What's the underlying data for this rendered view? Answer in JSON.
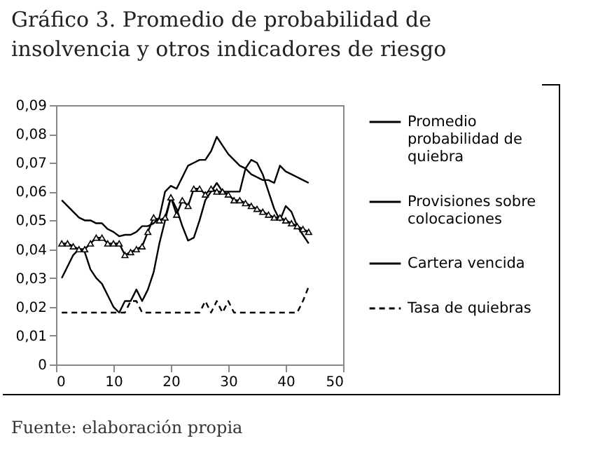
{
  "chart_data": {
    "type": "line",
    "title": "Gráfico 3. Promedio de probabilidad de insolvencia y otros indicadores de riesgo",
    "x": [
      1,
      2,
      3,
      4,
      5,
      6,
      7,
      8,
      9,
      10,
      11,
      12,
      13,
      14,
      15,
      16,
      17,
      18,
      19,
      20,
      21,
      22,
      23,
      24,
      25,
      26,
      27,
      28,
      29,
      30,
      31,
      32,
      33,
      34,
      35,
      36,
      37,
      38,
      39,
      40,
      41,
      42,
      43,
      44
    ],
    "series": [
      {
        "name": "Promedio probabilidad de quiebra",
        "color": "#000000",
        "values": [
          0.03,
          0.034,
          0.038,
          0.04,
          0.039,
          0.033,
          0.03,
          0.028,
          0.024,
          0.02,
          0.018,
          0.022,
          0.022,
          0.026,
          0.022,
          0.026,
          0.032,
          0.042,
          0.05,
          0.058,
          0.054,
          0.048,
          0.043,
          0.044,
          0.05,
          0.057,
          0.06,
          0.063,
          0.06,
          0.06,
          0.06,
          0.06,
          0.068,
          0.071,
          0.07,
          0.066,
          0.06,
          0.054,
          0.05,
          0.055,
          0.053,
          0.048,
          0.045,
          0.042
        ]
      },
      {
        "name": "Provisiones sobre colocaciones",
        "color": "#000000",
        "values": [
          0.057,
          0.055,
          0.053,
          0.051,
          0.05,
          0.05,
          0.049,
          0.049,
          0.047,
          0.046,
          0.0445,
          0.045,
          0.045,
          0.046,
          0.048,
          0.048,
          0.049,
          0.051,
          0.06,
          0.062,
          0.061,
          0.065,
          0.069,
          0.07,
          0.071,
          0.071,
          0.074,
          0.079,
          0.076,
          0.073,
          0.071,
          0.069,
          0.068,
          0.066,
          0.065,
          0.064,
          0.064,
          0.063,
          0.069,
          0.067,
          0.066,
          0.065,
          0.064,
          0.063
        ]
      },
      {
        "name": "Cartera vencida",
        "color": "#000000",
        "marker": "triangle",
        "values": [
          0.042,
          0.042,
          0.041,
          0.04,
          0.04,
          0.042,
          0.044,
          0.044,
          0.042,
          0.042,
          0.042,
          0.038,
          0.039,
          0.04,
          0.041,
          0.046,
          0.051,
          0.05,
          0.051,
          0.058,
          0.052,
          0.057,
          0.055,
          0.061,
          0.061,
          0.059,
          0.061,
          0.06,
          0.06,
          0.059,
          0.057,
          0.057,
          0.056,
          0.055,
          0.054,
          0.053,
          0.052,
          0.051,
          0.051,
          0.05,
          0.049,
          0.048,
          0.047,
          0.046
        ]
      },
      {
        "name": "Tasa de quiebras",
        "color": "#000000",
        "line_style": "dashed",
        "values": [
          0.018,
          0.018,
          0.018,
          0.018,
          0.018,
          0.018,
          0.018,
          0.018,
          0.018,
          0.018,
          0.018,
          0.018,
          0.022,
          0.022,
          0.018,
          0.018,
          0.018,
          0.018,
          0.018,
          0.018,
          0.018,
          0.018,
          0.018,
          0.018,
          0.018,
          0.022,
          0.018,
          0.022,
          0.018,
          0.022,
          0.018,
          0.018,
          0.018,
          0.018,
          0.018,
          0.018,
          0.018,
          0.018,
          0.018,
          0.018,
          0.018,
          0.018,
          0.022,
          0.027
        ]
      }
    ],
    "xlim": [
      0,
      50
    ],
    "xticks": [
      0,
      10,
      20,
      30,
      40,
      50
    ],
    "ylim": [
      0,
      0.09
    ],
    "yticks": [
      {
        "value": 0,
        "label": "0"
      },
      {
        "value": 0.01,
        "label": "0,01"
      },
      {
        "value": 0.02,
        "label": "0,02"
      },
      {
        "value": 0.03,
        "label": "0,03"
      },
      {
        "value": 0.04,
        "label": "0,04"
      },
      {
        "value": 0.05,
        "label": "0,05"
      },
      {
        "value": 0.06,
        "label": "0,06"
      },
      {
        "value": 0.07,
        "label": "0,07"
      },
      {
        "value": 0.08,
        "label": "0,08"
      },
      {
        "value": 0.09,
        "label": "0,09"
      }
    ],
    "grid": false,
    "legend": "right",
    "annotations": [
      "Fuente: elaboración propia"
    ]
  }
}
